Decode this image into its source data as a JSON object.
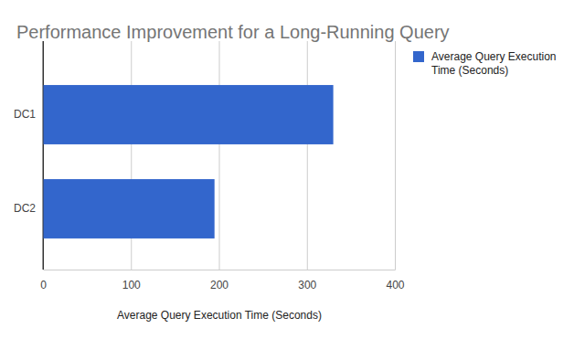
{
  "chart_data": {
    "type": "bar",
    "orientation": "horizontal",
    "title": "Performance Improvement for a Long-Running Query",
    "x_label": "Average Query Execution Time (Seconds)",
    "categories": [
      "DC1",
      "DC2"
    ],
    "series": [
      {
        "name": "Average Query Execution Time (Seconds)",
        "color": "#3366cc",
        "values": [
          330,
          195
        ]
      }
    ],
    "xlim": [
      0,
      400
    ],
    "xticks": [
      0,
      100,
      200,
      300,
      400
    ],
    "grid": true,
    "legend": "right"
  }
}
